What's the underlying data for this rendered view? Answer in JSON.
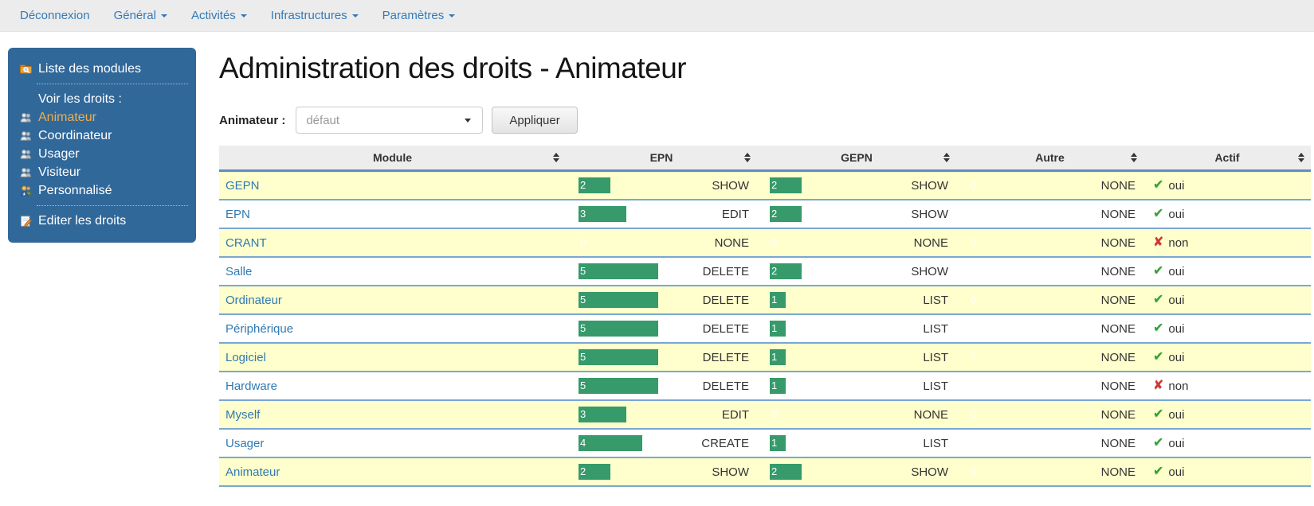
{
  "navbar": {
    "items": [
      {
        "label": "Déconnexion",
        "dropdown": false
      },
      {
        "label": "Général",
        "dropdown": true
      },
      {
        "label": "Activités",
        "dropdown": true
      },
      {
        "label": "Infrastructures",
        "dropdown": true
      },
      {
        "label": "Paramètres",
        "dropdown": true
      }
    ]
  },
  "sidebar": {
    "modules_link": {
      "label": "Liste des modules",
      "icon": "folder-search-icon"
    },
    "section_heading": "Voir les droits :",
    "roles": [
      {
        "label": "Animateur",
        "icon": "users-icon",
        "active": true
      },
      {
        "label": "Coordinateur",
        "icon": "users-icon",
        "active": false
      },
      {
        "label": "Usager",
        "icon": "users-icon",
        "active": false
      },
      {
        "label": "Visiteur",
        "icon": "users-icon",
        "active": false
      },
      {
        "label": "Personnalisé",
        "icon": "user-custom-icon",
        "active": false
      }
    ],
    "edit_link": {
      "label": "Editer les droits",
      "icon": "edit-icon"
    }
  },
  "main": {
    "title": "Administration des droits - Animateur",
    "form": {
      "label": "Animateur :",
      "select_value": "défaut",
      "apply_label": "Appliquer"
    }
  },
  "table": {
    "columns": [
      {
        "key": "module",
        "label": "Module"
      },
      {
        "key": "epn",
        "label": "EPN"
      },
      {
        "key": "gepn",
        "label": "GEPN"
      },
      {
        "key": "autre",
        "label": "Autre"
      },
      {
        "key": "actif",
        "label": "Actif"
      }
    ],
    "bar_max": 5,
    "actif_true_label": "oui",
    "actif_false_label": "non",
    "rows": [
      {
        "module": "GEPN",
        "epn": {
          "value": 2,
          "perm": "SHOW"
        },
        "gepn": {
          "value": 2,
          "perm": "SHOW"
        },
        "autre": {
          "value": 0,
          "perm": "NONE"
        },
        "actif": true
      },
      {
        "module": "EPN",
        "epn": {
          "value": 3,
          "perm": "EDIT"
        },
        "gepn": {
          "value": 2,
          "perm": "SHOW"
        },
        "autre": {
          "value": 0,
          "perm": "NONE"
        },
        "actif": true
      },
      {
        "module": "CRANT",
        "epn": {
          "value": 0,
          "perm": "NONE"
        },
        "gepn": {
          "value": 0,
          "perm": "NONE"
        },
        "autre": {
          "value": 0,
          "perm": "NONE"
        },
        "actif": false
      },
      {
        "module": "Salle",
        "epn": {
          "value": 5,
          "perm": "DELETE"
        },
        "gepn": {
          "value": 2,
          "perm": "SHOW"
        },
        "autre": {
          "value": 0,
          "perm": "NONE"
        },
        "actif": true
      },
      {
        "module": "Ordinateur",
        "epn": {
          "value": 5,
          "perm": "DELETE"
        },
        "gepn": {
          "value": 1,
          "perm": "LIST"
        },
        "autre": {
          "value": 0,
          "perm": "NONE"
        },
        "actif": true
      },
      {
        "module": "Périphérique",
        "epn": {
          "value": 5,
          "perm": "DELETE"
        },
        "gepn": {
          "value": 1,
          "perm": "LIST"
        },
        "autre": {
          "value": 0,
          "perm": "NONE"
        },
        "actif": true
      },
      {
        "module": "Logiciel",
        "epn": {
          "value": 5,
          "perm": "DELETE"
        },
        "gepn": {
          "value": 1,
          "perm": "LIST"
        },
        "autre": {
          "value": 0,
          "perm": "NONE"
        },
        "actif": true
      },
      {
        "module": "Hardware",
        "epn": {
          "value": 5,
          "perm": "DELETE"
        },
        "gepn": {
          "value": 1,
          "perm": "LIST"
        },
        "autre": {
          "value": 0,
          "perm": "NONE"
        },
        "actif": false
      },
      {
        "module": "Myself",
        "epn": {
          "value": 3,
          "perm": "EDIT"
        },
        "gepn": {
          "value": 0,
          "perm": "NONE"
        },
        "autre": {
          "value": 0,
          "perm": "NONE"
        },
        "actif": true
      },
      {
        "module": "Usager",
        "epn": {
          "value": 4,
          "perm": "CREATE"
        },
        "gepn": {
          "value": 1,
          "perm": "LIST"
        },
        "autre": {
          "value": 0,
          "perm": "NONE"
        },
        "actif": true
      },
      {
        "module": "Animateur",
        "epn": {
          "value": 2,
          "perm": "SHOW"
        },
        "gepn": {
          "value": 2,
          "perm": "SHOW"
        },
        "autre": {
          "value": 0,
          "perm": "NONE"
        },
        "actif": true
      }
    ]
  },
  "colors": {
    "link_blue": "#337ab7",
    "sidebar_bg": "#31689a",
    "active_role": "#f0ad4e",
    "bar_green": "#369a6b",
    "row_alt_yellow": "#feffcc",
    "table_rule_blue": "#79a7d4",
    "check_green": "#2fa332",
    "cross_red": "#cf3430"
  }
}
